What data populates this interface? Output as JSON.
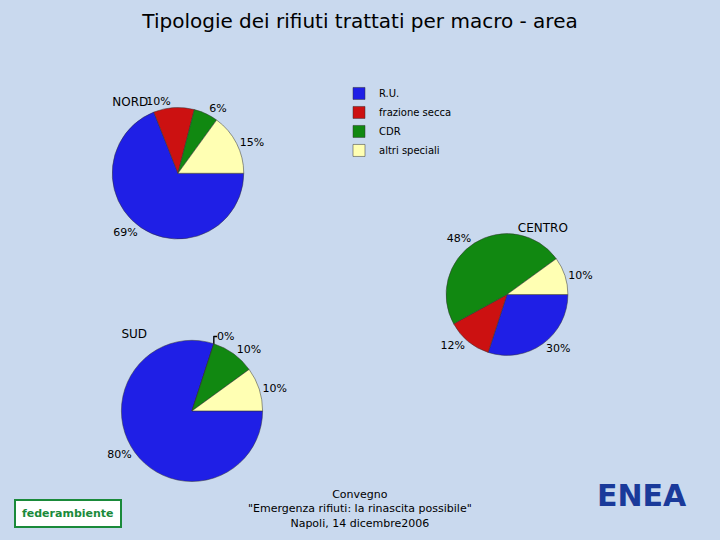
{
  "title": "Tipologie dei rifiuti trattati per macro - area",
  "footer": [
    "Convegno",
    "\"Emergenza rifiuti: la rinascita possibile\"",
    "Napoli, 14 dicembre2006"
  ],
  "logos": [
    "federambiente",
    "ENEA"
  ],
  "chart_data": [
    {
      "type": "pie",
      "title": "NORD",
      "categories": [
        "R.U.",
        "frazione secca",
        "CDR",
        "altri speciali"
      ],
      "values": [
        69,
        10,
        6,
        15
      ],
      "value_labels": [
        "69%",
        "10%",
        "6%",
        "15%"
      ],
      "colors": [
        "#1f1fe6",
        "#cc1111",
        "#118811",
        "#ffffb3"
      ],
      "data_labels": true,
      "legend": "top"
    },
    {
      "type": "pie",
      "title": "CENTRO",
      "categories": [
        "R.U.",
        "frazione secca",
        "CDR",
        "altri speciali"
      ],
      "values": [
        30,
        12,
        48,
        10
      ],
      "value_labels": [
        "30%",
        "12%",
        "48%",
        "10%"
      ],
      "colors": [
        "#1f1fe6",
        "#cc1111",
        "#118811",
        "#ffffb3"
      ],
      "data_labels": true
    },
    {
      "type": "pie",
      "title": "SUD",
      "categories": [
        "R.U.",
        "frazione secca",
        "CDR",
        "altri speciali"
      ],
      "values": [
        80,
        0,
        10,
        10
      ],
      "value_labels": [
        "80%",
        "0%",
        "10%",
        "10%"
      ],
      "colors": [
        "#1f1fe6",
        "#cc1111",
        "#118811",
        "#ffffb3"
      ],
      "data_labels": true
    }
  ]
}
